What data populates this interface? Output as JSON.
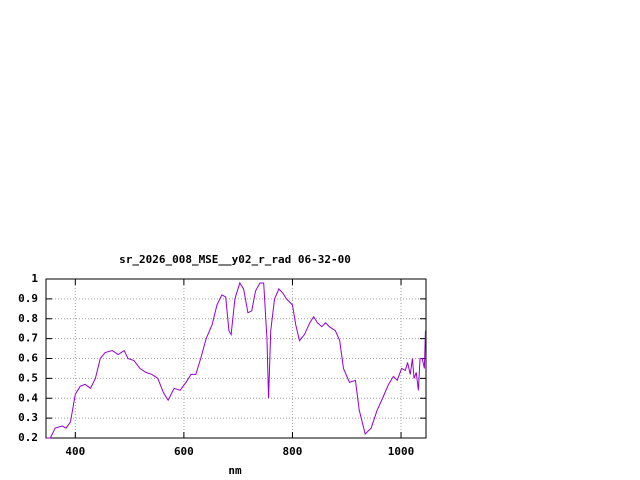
{
  "chart_data": {
    "type": "line",
    "title": "sr_2026_008_MSE__y02_r_rad 06-32-00",
    "xlabel": "nm",
    "x": [
      347,
      354,
      363,
      376,
      383,
      391,
      400,
      409,
      418,
      428,
      437,
      446,
      455,
      468,
      479,
      490,
      497,
      508,
      519,
      530,
      541,
      552,
      562,
      571,
      582,
      593,
      604,
      613,
      622,
      631,
      641,
      652,
      661,
      670,
      677,
      683,
      687,
      694,
      703,
      710,
      718,
      725,
      732,
      740,
      747,
      753,
      756,
      760,
      767,
      775,
      782,
      789,
      800,
      806,
      813,
      822,
      832,
      839,
      846,
      854,
      861,
      868,
      879,
      887,
      894,
      905,
      916,
      923,
      934,
      945,
      956,
      966,
      977,
      986,
      993,
      1001,
      1008,
      1012,
      1017,
      1021,
      1024,
      1028,
      1032,
      1035,
      1039,
      1043,
      1045
    ],
    "values": [
      0.2,
      0.2,
      0.25,
      0.26,
      0.25,
      0.28,
      0.42,
      0.46,
      0.47,
      0.45,
      0.5,
      0.6,
      0.63,
      0.64,
      0.62,
      0.64,
      0.6,
      0.59,
      0.55,
      0.53,
      0.52,
      0.5,
      0.43,
      0.39,
      0.45,
      0.44,
      0.48,
      0.52,
      0.52,
      0.6,
      0.7,
      0.77,
      0.87,
      0.92,
      0.91,
      0.74,
      0.72,
      0.9,
      0.98,
      0.95,
      0.83,
      0.84,
      0.94,
      0.98,
      0.98,
      0.7,
      0.4,
      0.74,
      0.9,
      0.95,
      0.93,
      0.9,
      0.87,
      0.77,
      0.69,
      0.72,
      0.78,
      0.81,
      0.78,
      0.76,
      0.78,
      0.76,
      0.74,
      0.69,
      0.55,
      0.48,
      0.49,
      0.34,
      0.22,
      0.25,
      0.34,
      0.4,
      0.47,
      0.51,
      0.49,
      0.55,
      0.54,
      0.58,
      0.52,
      0.6,
      0.5,
      0.53,
      0.44,
      0.6,
      0.6,
      0.55,
      0.74
    ],
    "color": "#9400d3",
    "xlim": [
      346,
      1046
    ],
    "xticks": [
      400,
      600,
      800,
      1000
    ],
    "ylim": [
      0.2,
      1
    ],
    "yticks": [
      0.2,
      0.3,
      0.4,
      0.5,
      0.6,
      0.7,
      0.8,
      0.9,
      1
    ],
    "grid": true
  }
}
